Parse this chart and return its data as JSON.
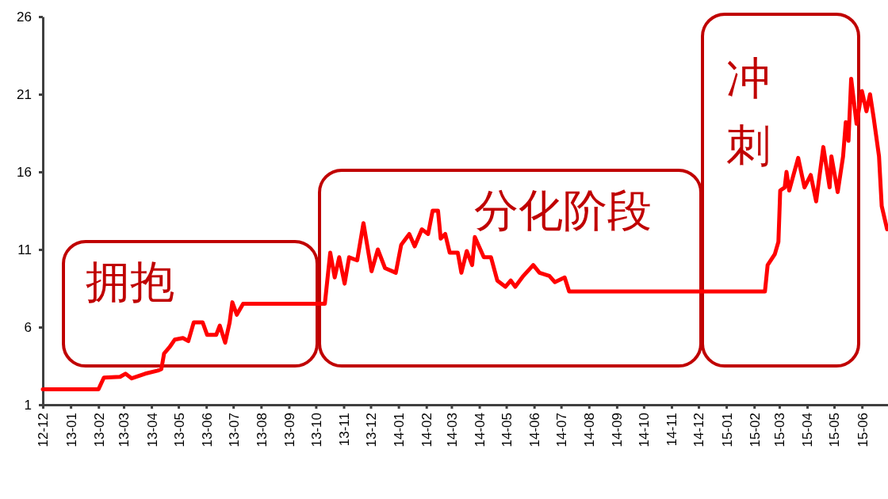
{
  "chart_data": {
    "type": "line",
    "x": [
      "2012-12-01",
      "2013-02-01",
      "2013-02-07",
      "2013-02-25",
      "2013-03-03",
      "2013-03-10",
      "2013-03-25",
      "2013-04-08",
      "2013-04-12",
      "2013-04-15",
      "2013-04-21",
      "2013-04-27",
      "2013-05-06",
      "2013-05-12",
      "2013-05-18",
      "2013-05-28",
      "2013-06-02",
      "2013-06-12",
      "2013-06-16",
      "2013-06-22",
      "2013-06-27",
      "2013-06-30",
      "2013-07-05",
      "2013-07-12",
      "2013-10-11",
      "2013-10-17",
      "2013-10-22",
      "2013-10-27",
      "2013-11-02",
      "2013-11-07",
      "2013-11-16",
      "2013-11-23",
      "2013-12-02",
      "2013-12-09",
      "2013-12-17",
      "2013-12-29",
      "2014-01-04",
      "2014-01-13",
      "2014-01-19",
      "2014-01-27",
      "2014-02-03",
      "2014-02-08",
      "2014-02-14",
      "2014-02-17",
      "2014-02-22",
      "2014-02-27",
      "2014-03-08",
      "2014-03-12",
      "2014-03-18",
      "2014-03-24",
      "2014-03-27",
      "2014-04-06",
      "2014-04-14",
      "2014-04-21",
      "2014-04-30",
      "2014-05-06",
      "2014-05-11",
      "2014-05-20",
      "2014-05-31",
      "2014-06-07",
      "2014-06-18",
      "2014-06-24",
      "2014-07-05",
      "2014-07-10",
      "2015-02-13",
      "2015-02-16",
      "2015-02-24",
      "2015-02-28",
      "2015-03-02",
      "2015-03-07",
      "2015-03-09",
      "2015-03-12",
      "2015-03-22",
      "2015-03-29",
      "2015-04-05",
      "2015-04-11",
      "2015-04-19",
      "2015-04-26",
      "2015-04-28",
      "2015-05-05",
      "2015-05-11",
      "2015-05-14",
      "2015-05-17",
      "2015-05-20",
      "2015-05-26",
      "2015-06-01",
      "2015-06-06",
      "2015-06-10",
      "2015-06-14",
      "2015-06-20",
      "2015-06-23",
      "2015-06-29"
    ],
    "series": [
      {
        "color": "#ff0000",
        "values": [
          2.0,
          2.0,
          2.75,
          2.8,
          3.0,
          2.7,
          3.0,
          3.2,
          3.3,
          4.3,
          4.7,
          5.2,
          5.3,
          5.1,
          6.3,
          6.3,
          5.5,
          5.5,
          6.1,
          5.0,
          6.3,
          7.6,
          6.8,
          7.5,
          7.5,
          10.8,
          9.2,
          10.5,
          8.8,
          10.5,
          10.3,
          12.7,
          9.6,
          11.0,
          9.8,
          9.5,
          11.3,
          12.0,
          11.2,
          12.3,
          12.0,
          13.5,
          13.5,
          11.7,
          12.0,
          10.8,
          10.8,
          9.5,
          10.9,
          10.0,
          11.8,
          10.5,
          10.5,
          9.0,
          8.6,
          9.0,
          8.6,
          9.3,
          10.0,
          9.5,
          9.3,
          8.9,
          9.2,
          8.3,
          8.3,
          10.0,
          10.7,
          11.5,
          14.8,
          15.0,
          16.0,
          14.8,
          16.9,
          15.0,
          15.8,
          14.1,
          17.6,
          15.0,
          17.0,
          14.7,
          17.0,
          19.2,
          18.0,
          22.0,
          19.1,
          21.2,
          19.9,
          21.0,
          19.5,
          17.0,
          13.8,
          12.3
        ]
      }
    ],
    "xlim": [
      "2012-12-01",
      "2015-06-30"
    ],
    "xticks": [
      {
        "value": "2012-12-01",
        "label": "12-12"
      },
      {
        "value": "2013-01-01",
        "label": "13-01"
      },
      {
        "value": "2013-02-01",
        "label": "13-02"
      },
      {
        "value": "2013-03-01",
        "label": "13-03"
      },
      {
        "value": "2013-04-01",
        "label": "13-04"
      },
      {
        "value": "2013-05-01",
        "label": "13-05"
      },
      {
        "value": "2013-06-01",
        "label": "13-06"
      },
      {
        "value": "2013-07-01",
        "label": "13-07"
      },
      {
        "value": "2013-08-01",
        "label": "13-08"
      },
      {
        "value": "2013-09-01",
        "label": "13-09"
      },
      {
        "value": "2013-10-01",
        "label": "13-10"
      },
      {
        "value": "2013-11-01",
        "label": "13-11"
      },
      {
        "value": "2013-12-01",
        "label": "13-12"
      },
      {
        "value": "2014-01-01",
        "label": "14-01"
      },
      {
        "value": "2014-02-01",
        "label": "14-02"
      },
      {
        "value": "2014-03-01",
        "label": "14-03"
      },
      {
        "value": "2014-04-01",
        "label": "14-04"
      },
      {
        "value": "2014-05-01",
        "label": "14-05"
      },
      {
        "value": "2014-06-01",
        "label": "14-06"
      },
      {
        "value": "2014-07-01",
        "label": "14-07"
      },
      {
        "value": "2014-08-01",
        "label": "14-08"
      },
      {
        "value": "2014-09-01",
        "label": "14-09"
      },
      {
        "value": "2014-10-01",
        "label": "14-10"
      },
      {
        "value": "2014-11-01",
        "label": "14-11"
      },
      {
        "value": "2014-12-01",
        "label": "14-12"
      },
      {
        "value": "2015-01-01",
        "label": "15-01"
      },
      {
        "value": "2015-02-01",
        "label": "15-02"
      },
      {
        "value": "2015-03-01",
        "label": "15-03"
      },
      {
        "value": "2015-04-01",
        "label": "15-04"
      },
      {
        "value": "2015-05-01",
        "label": "15-05"
      },
      {
        "value": "2015-06-01",
        "label": "15-06"
      }
    ],
    "ylim": [
      1,
      26
    ],
    "yticks": [
      1,
      6,
      11,
      16,
      21,
      26
    ],
    "annotations": [
      "拥抱",
      "分化阶段",
      "冲刺"
    ]
  }
}
